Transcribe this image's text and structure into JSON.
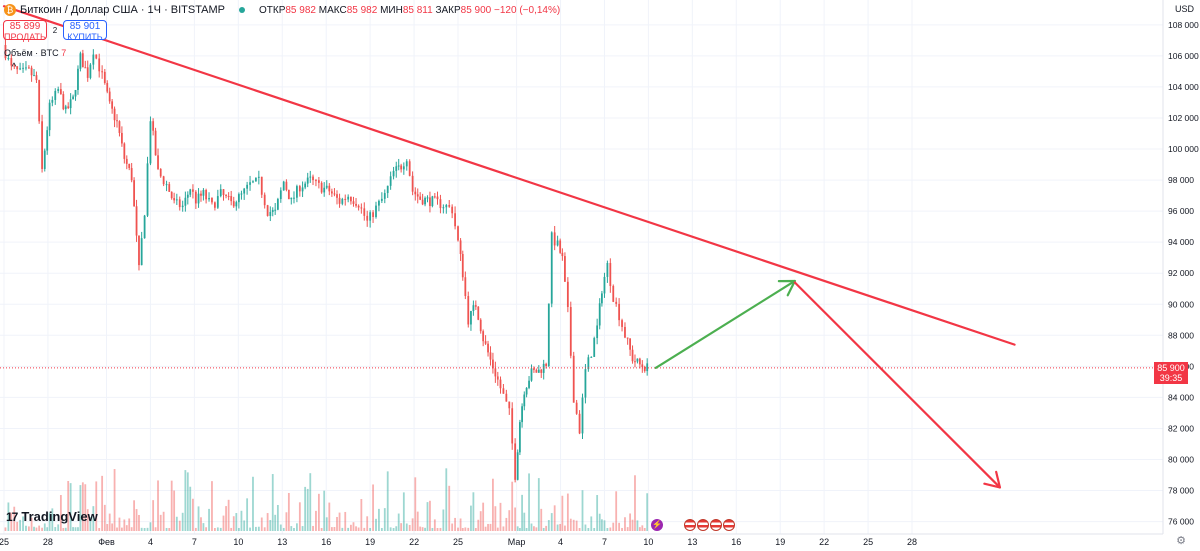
{
  "header": {
    "symbol_title": "Биткоин / Доллар США · 1Ч · BITSTAMP",
    "coin_glyph": "₿",
    "ohlc": {
      "open_label": "ОТКР",
      "open": "85 982",
      "high_label": "МАКС",
      "high": "85 982",
      "low_label": "МИН",
      "low": "85 811",
      "close_label": "ЗАКР",
      "close": "85 900",
      "change": "−120 (−0,14%)"
    }
  },
  "trade": {
    "sell_price": "85 899",
    "sell_label": "ПРОДАТЬ",
    "spread": "2",
    "buy_price": "85 901",
    "buy_label": "КУПИТЬ"
  },
  "volume": {
    "label": "Объём · BTC",
    "value": "7"
  },
  "collapse_glyph": "^",
  "currency": "USD",
  "last_price": {
    "value": "85 900",
    "countdown": "39:35",
    "y": 85900
  },
  "logo": {
    "mark": "17",
    "text": "TradingView"
  },
  "events": {
    "bolt_glyph": "⚡",
    "flags": 4
  },
  "settings_glyph": "⚙",
  "colors": {
    "up": "#26a69a",
    "down": "#ef5350",
    "trendline": "#f23645",
    "green_arrow": "#4caf50",
    "price_line": "#f23645"
  },
  "chart_data": {
    "type": "line",
    "ylabel": "",
    "xlabel": "",
    "y_ticks": [
      76000,
      78000,
      80000,
      82000,
      84000,
      86000,
      88000,
      90000,
      92000,
      94000,
      96000,
      98000,
      100000,
      102000,
      104000,
      106000,
      108000
    ],
    "y_tick_labels": [
      "76 000",
      "78 000",
      "80 000",
      "82 000",
      "84 000",
      "86 000",
      "88 000",
      "90 000",
      "92 000",
      "94 000",
      "96 000",
      "98 000",
      "100 000",
      "102 000",
      "104 000",
      "106 000",
      "108 000"
    ],
    "ylim": [
      75200,
      109600
    ],
    "x_ticks": [
      {
        "t": 0,
        "label": "25"
      },
      {
        "t": 3,
        "label": "28"
      },
      {
        "t": 7,
        "label": "Фев"
      },
      {
        "t": 10,
        "label": "4"
      },
      {
        "t": 13,
        "label": "7"
      },
      {
        "t": 16,
        "label": "10"
      },
      {
        "t": 19,
        "label": "13"
      },
      {
        "t": 22,
        "label": "16"
      },
      {
        "t": 25,
        "label": "19"
      },
      {
        "t": 28,
        "label": "22"
      },
      {
        "t": 31,
        "label": "25"
      },
      {
        "t": 35,
        "label": "Мар"
      },
      {
        "t": 38,
        "label": "4"
      },
      {
        "t": 41,
        "label": "7"
      },
      {
        "t": 44,
        "label": "10"
      },
      {
        "t": 47,
        "label": "13"
      },
      {
        "t": 50,
        "label": "16"
      },
      {
        "t": 53,
        "label": "19"
      },
      {
        "t": 56,
        "label": "22"
      },
      {
        "t": 59,
        "label": "25"
      },
      {
        "t": 62,
        "label": "28"
      }
    ],
    "xlim": [
      0,
      79
    ],
    "series": [
      {
        "kind": "price",
        "points": [
          [
            0,
            106700
          ],
          [
            0.6,
            105200
          ],
          [
            1.2,
            104900
          ],
          [
            1.8,
            105000
          ],
          [
            2.3,
            104400
          ],
          [
            2.7,
            98600
          ],
          [
            3.2,
            102700
          ],
          [
            3.8,
            103800
          ],
          [
            4.3,
            102400
          ],
          [
            4.8,
            103200
          ],
          [
            5.3,
            105900
          ],
          [
            5.8,
            104800
          ],
          [
            6.2,
            106400
          ],
          [
            6.8,
            104700
          ],
          [
            7.3,
            102800
          ],
          [
            7.8,
            101700
          ],
          [
            8.3,
            99400
          ],
          [
            8.8,
            98200
          ],
          [
            9.3,
            92200
          ],
          [
            9.7,
            96000
          ],
          [
            10.1,
            102000
          ],
          [
            10.6,
            98500
          ],
          [
            11.2,
            97700
          ],
          [
            11.7,
            96500
          ],
          [
            12.3,
            96300
          ],
          [
            12.8,
            97500
          ],
          [
            13.2,
            96700
          ],
          [
            13.7,
            97100
          ],
          [
            14.3,
            96300
          ],
          [
            14.9,
            97100
          ],
          [
            15.6,
            96500
          ],
          [
            16.3,
            97000
          ],
          [
            16.9,
            97700
          ],
          [
            17.5,
            97900
          ],
          [
            18.1,
            96000
          ],
          [
            18.6,
            95900
          ],
          [
            19.2,
            97900
          ],
          [
            19.7,
            96600
          ],
          [
            20.3,
            97600
          ],
          [
            21.0,
            98000
          ],
          [
            21.6,
            97600
          ],
          [
            22.3,
            97300
          ],
          [
            23.0,
            96600
          ],
          [
            23.6,
            97000
          ],
          [
            24.3,
            96500
          ],
          [
            24.9,
            95300
          ],
          [
            25.5,
            96200
          ],
          [
            26.1,
            97000
          ],
          [
            26.7,
            98500
          ],
          [
            27.2,
            98900
          ],
          [
            27.6,
            99500
          ],
          [
            28.0,
            97300
          ],
          [
            28.5,
            96800
          ],
          [
            29.0,
            96700
          ],
          [
            29.5,
            96600
          ],
          [
            30.1,
            96400
          ],
          [
            30.7,
            96100
          ],
          [
            31.1,
            94000
          ],
          [
            31.4,
            92000
          ],
          [
            31.8,
            89000
          ],
          [
            32.3,
            90000
          ],
          [
            32.8,
            87800
          ],
          [
            33.3,
            86400
          ],
          [
            33.8,
            85100
          ],
          [
            34.2,
            84100
          ],
          [
            34.6,
            83000
          ],
          [
            35.0,
            79000
          ],
          [
            35.3,
            82500
          ],
          [
            35.6,
            84500
          ],
          [
            36.1,
            85600
          ],
          [
            36.6,
            85700
          ],
          [
            37.1,
            86200
          ],
          [
            37.5,
            94300
          ],
          [
            37.9,
            93800
          ],
          [
            38.2,
            92900
          ],
          [
            38.6,
            89500
          ],
          [
            39.0,
            84000
          ],
          [
            39.4,
            81900
          ],
          [
            39.8,
            85700
          ],
          [
            40.2,
            86900
          ],
          [
            40.6,
            88500
          ],
          [
            40.9,
            91000
          ],
          [
            41.3,
            92500
          ],
          [
            41.7,
            90500
          ],
          [
            42.1,
            89300
          ],
          [
            42.5,
            88000
          ],
          [
            43.0,
            86500
          ],
          [
            43.5,
            86100
          ],
          [
            44.0,
            85900
          ]
        ]
      }
    ],
    "annotations": [
      {
        "type": "trendline",
        "from": [
          0,
          109200
        ],
        "to": [
          69,
          87400
        ],
        "color": "#f23645"
      },
      {
        "type": "arrow",
        "from": [
          44.5,
          85900
        ],
        "to": [
          54,
          91500
        ],
        "color": "#4caf50"
      },
      {
        "type": "arrow",
        "from": [
          54,
          91400
        ],
        "to": [
          68,
          78200
        ],
        "color": "#f23645"
      }
    ]
  }
}
